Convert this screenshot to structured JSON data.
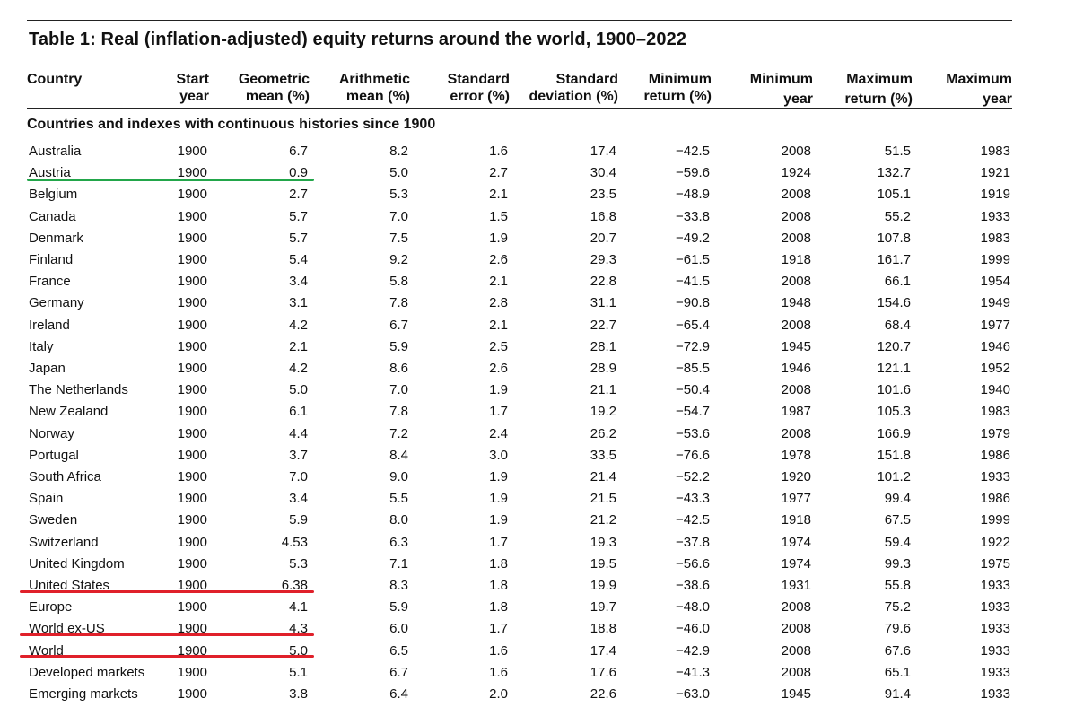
{
  "title": "Table 1: Real (inflation-adjusted) equity returns around the world, 1900–2022",
  "headers": [
    {
      "l1": "Country",
      "l2": ""
    },
    {
      "l1": "Start",
      "l2": "year"
    },
    {
      "l1": "Geometric",
      "l2": "mean (%)"
    },
    {
      "l1": "Arithmetic",
      "l2": "mean (%)"
    },
    {
      "l1": "Standard",
      "l2": "error (%)"
    },
    {
      "l1": "Standard",
      "l2": "deviation (%)"
    },
    {
      "l1": "Minimum",
      "l2": "return (%)"
    },
    {
      "l1": "Minimum",
      "l2": "year"
    },
    {
      "l1": "Maximum",
      "l2": "return (%)"
    },
    {
      "l1": "Maximum",
      "l2": "year"
    }
  ],
  "section_label": "Countries and indexes with continuous histories since 1900",
  "rows": [
    [
      "Australia",
      "1900",
      "6.7",
      "8.2",
      "1.6",
      "17.4",
      "−42.5",
      "2008",
      "51.5",
      "1983"
    ],
    [
      "Austria",
      "1900",
      "0.9",
      "5.0",
      "2.7",
      "30.4",
      "−59.6",
      "1924",
      "132.7",
      "1921"
    ],
    [
      "Belgium",
      "1900",
      "2.7",
      "5.3",
      "2.1",
      "23.5",
      "−48.9",
      "2008",
      "105.1",
      "1919"
    ],
    [
      "Canada",
      "1900",
      "5.7",
      "7.0",
      "1.5",
      "16.8",
      "−33.8",
      "2008",
      "55.2",
      "1933"
    ],
    [
      "Denmark",
      "1900",
      "5.7",
      "7.5",
      "1.9",
      "20.7",
      "−49.2",
      "2008",
      "107.8",
      "1983"
    ],
    [
      "Finland",
      "1900",
      "5.4",
      "9.2",
      "2.6",
      "29.3",
      "−61.5",
      "1918",
      "161.7",
      "1999"
    ],
    [
      "France",
      "1900",
      "3.4",
      "5.8",
      "2.1",
      "22.8",
      "−41.5",
      "2008",
      "66.1",
      "1954"
    ],
    [
      "Germany",
      "1900",
      "3.1",
      "7.8",
      "2.8",
      "31.1",
      "−90.8",
      "1948",
      "154.6",
      "1949"
    ],
    [
      "Ireland",
      "1900",
      "4.2",
      "6.7",
      "2.1",
      "22.7",
      "−65.4",
      "2008",
      "68.4",
      "1977"
    ],
    [
      "Italy",
      "1900",
      "2.1",
      "5.9",
      "2.5",
      "28.1",
      "−72.9",
      "1945",
      "120.7",
      "1946"
    ],
    [
      "Japan",
      "1900",
      "4.2",
      "8.6",
      "2.6",
      "28.9",
      "−85.5",
      "1946",
      "121.1",
      "1952"
    ],
    [
      "The Netherlands",
      "1900",
      "5.0",
      "7.0",
      "1.9",
      "21.1",
      "−50.4",
      "2008",
      "101.6",
      "1940"
    ],
    [
      "New Zealand",
      "1900",
      "6.1",
      "7.8",
      "1.7",
      "19.2",
      "−54.7",
      "1987",
      "105.3",
      "1983"
    ],
    [
      "Norway",
      "1900",
      "4.4",
      "7.2",
      "2.4",
      "26.2",
      "−53.6",
      "2008",
      "166.9",
      "1979"
    ],
    [
      "Portugal",
      "1900",
      "3.7",
      "8.4",
      "3.0",
      "33.5",
      "−76.6",
      "1978",
      "151.8",
      "1986"
    ],
    [
      "South Africa",
      "1900",
      "7.0",
      "9.0",
      "1.9",
      "21.4",
      "−52.2",
      "1920",
      "101.2",
      "1933"
    ],
    [
      "Spain",
      "1900",
      "3.4",
      "5.5",
      "1.9",
      "21.5",
      "−43.3",
      "1977",
      "99.4",
      "1986"
    ],
    [
      "Sweden",
      "1900",
      "5.9",
      "8.0",
      "1.9",
      "21.2",
      "−42.5",
      "1918",
      "67.5",
      "1999"
    ],
    [
      "Switzerland",
      "1900",
      "4.53",
      "6.3",
      "1.7",
      "19.3",
      "−37.8",
      "1974",
      "59.4",
      "1922"
    ],
    [
      "United Kingdom",
      "1900",
      "5.3",
      "7.1",
      "1.8",
      "19.5",
      "−56.6",
      "1974",
      "99.3",
      "1975"
    ],
    [
      "United States",
      "1900",
      "6.38",
      "8.3",
      "1.8",
      "19.9",
      "−38.6",
      "1931",
      "55.8",
      "1933"
    ],
    [
      "Europe",
      "1900",
      "4.1",
      "5.9",
      "1.8",
      "19.7",
      "−48.0",
      "2008",
      "75.2",
      "1933"
    ],
    [
      "World ex-US",
      "1900",
      "4.3",
      "6.0",
      "1.7",
      "18.8",
      "−46.0",
      "2008",
      "79.6",
      "1933"
    ],
    [
      "World",
      "1900",
      "5.0",
      "6.5",
      "1.6",
      "17.4",
      "−42.9",
      "2008",
      "67.6",
      "1933"
    ],
    [
      "Developed markets",
      "1900",
      "5.1",
      "6.7",
      "1.6",
      "17.6",
      "−41.3",
      "2008",
      "65.1",
      "1933"
    ],
    [
      "Emerging markets",
      "1900",
      "3.8",
      "6.4",
      "2.0",
      "22.6",
      "−63.0",
      "1945",
      "91.4",
      "1933"
    ]
  ],
  "highlight_colors": {
    "austria": "#22a64a",
    "others": "#e0202a"
  }
}
